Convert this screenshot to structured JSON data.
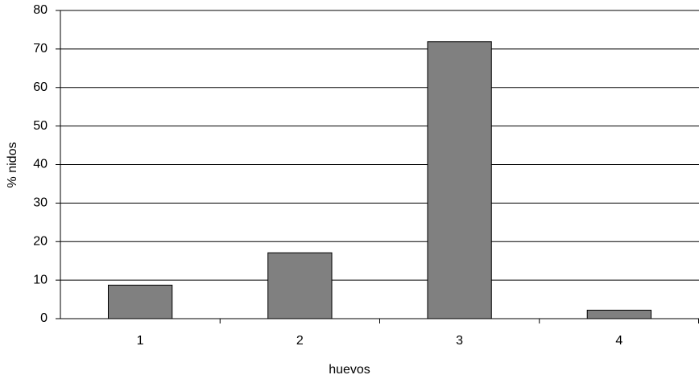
{
  "chart_data": {
    "type": "bar",
    "x_label": "huevos",
    "y_label": "% nidos",
    "categories": [
      "1",
      "2",
      "3",
      "4"
    ],
    "values": [
      8.7,
      17.1,
      71.9,
      2.2
    ],
    "color": "#808080",
    "ylim": [
      0,
      80
    ],
    "yticks": [
      0,
      10,
      20,
      30,
      40,
      50,
      60,
      70,
      80
    ],
    "grid": true
  }
}
